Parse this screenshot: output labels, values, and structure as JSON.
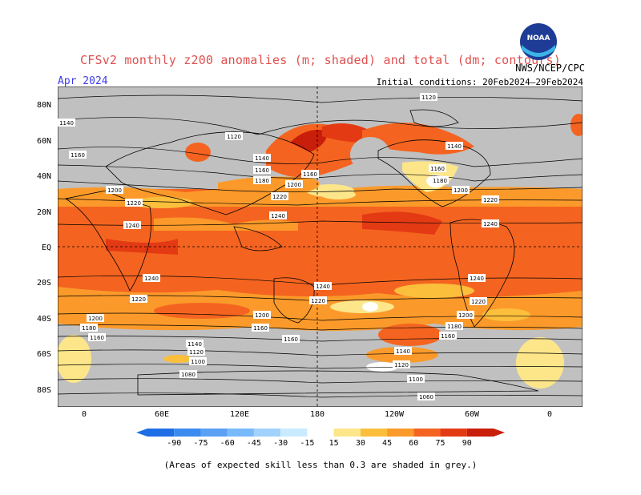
{
  "title": "CFSv2 monthly z200 anomalies (m; shaded) and total (dm; contours)",
  "valid_month": "Apr 2024",
  "initial_conditions": "Initial conditions: 20Feb2024–29Feb2024",
  "agency": "NWS/NCEP/CPC",
  "logo_text": "NOAA",
  "lat_labels": [
    "80N",
    "60N",
    "40N",
    "20N",
    "EQ",
    "20S",
    "40S",
    "60S",
    "80S"
  ],
  "lon_labels": [
    "0",
    "60E",
    "120E",
    "180",
    "120W",
    "60W",
    "0"
  ],
  "colorbar_ticks": [
    "-90",
    "-75",
    "-60",
    "-45",
    "-30",
    "-15",
    "15",
    "30",
    "45",
    "60",
    "75",
    "90"
  ],
  "colorbar_colors": [
    "#1e6ee6",
    "#3c8cf0",
    "#5aa0f5",
    "#78b9fa",
    "#a0d2fc",
    "#c8ebff",
    "#ffffff",
    "#fde68a",
    "#fbbf3c",
    "#fb9a2a",
    "#f46420",
    "#e43a14",
    "#c81e0a"
  ],
  "contour_labels": [
    "1120",
    "1140",
    "1160",
    "1180",
    "1200",
    "1220",
    "1240",
    "1100",
    "1080",
    "1060"
  ],
  "footnote": "(Areas of expected skill less than 0.3 are shaded in grey.)"
}
